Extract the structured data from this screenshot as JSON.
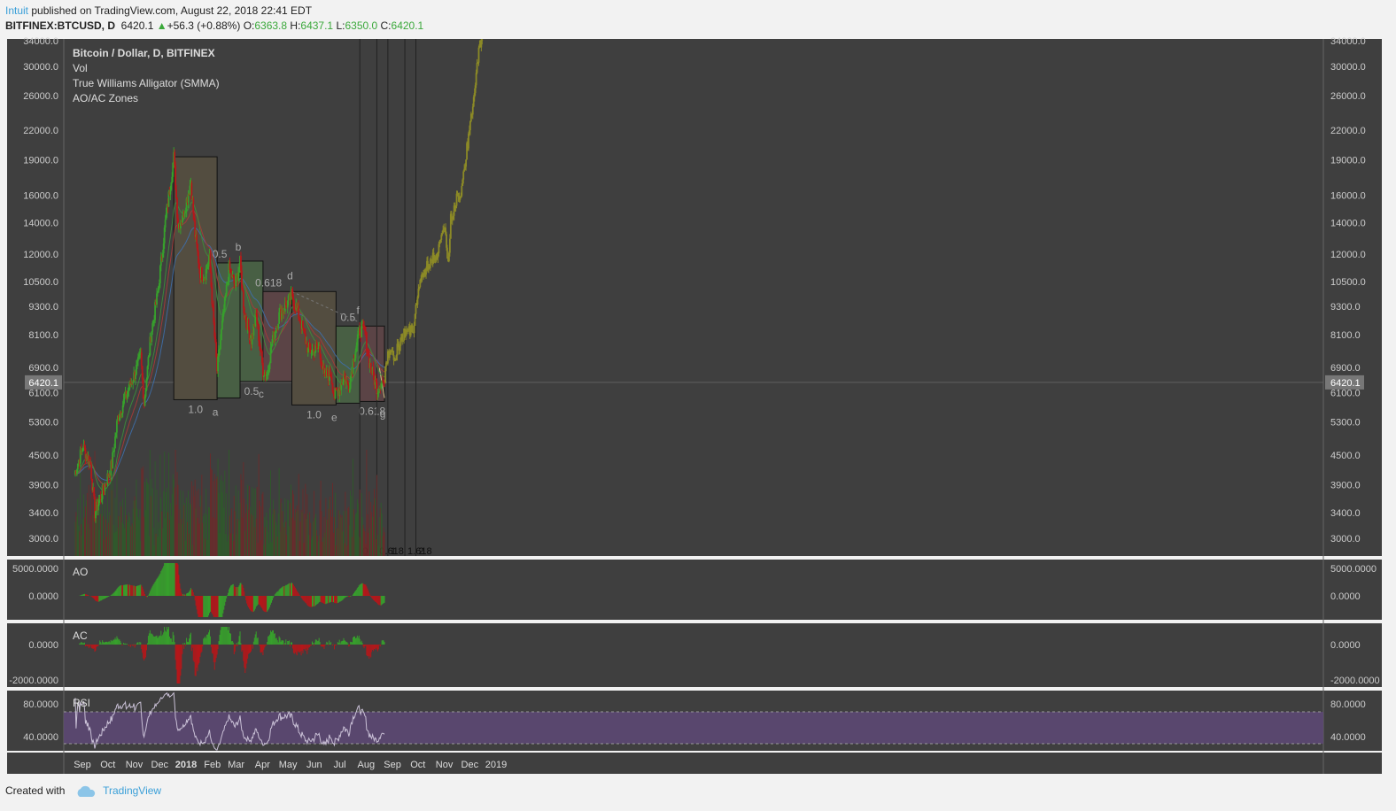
{
  "header": {
    "author": "Intuit",
    "published_text": "published on TradingView.com, August 22, 2018 22:41 EDT",
    "symbol": "BITFINEX:BTCUSD, D",
    "last_price": "6420.1",
    "change": "+56.3 (+0.88%)",
    "open_label": "O:",
    "open": "6363.8",
    "high_label": "H:",
    "high": "6437.1",
    "low_label": "L:",
    "low": "6350.0",
    "close_label": "C:",
    "close": "6420.1"
  },
  "legend": [
    "Bitcoin / Dollar, D, BITFINEX",
    "Vol",
    "True Williams Alligator (SMMA)",
    "AO/AC Zones"
  ],
  "footer": {
    "created_with": "Created with",
    "brand": "TradingView"
  },
  "colors": {
    "panel_bg": "#3f3f3f",
    "page_bg": "#f2f2f2",
    "up": "#37a02c",
    "down": "#b5171a",
    "projection": "#8c8a26",
    "rsi_band": "#5c4873",
    "green_box": "#485f44",
    "red_box": "#5b4446",
    "olive_box": "#534d40"
  },
  "chart_data": {
    "type": "candlestick",
    "title": "Bitcoin / Dollar, D, BITFINEX",
    "price_axis_ticks": [
      "34000.0",
      "30000.0",
      "26000.0",
      "22000.0",
      "19000.0",
      "16000.0",
      "14000.0",
      "12000.0",
      "10500.0",
      "9300.0",
      "8100.0",
      "6900.0",
      "6100.0",
      "5300.0",
      "4500.0",
      "3900.0",
      "3400.0",
      "3000.0"
    ],
    "current_price_label": "6420.1",
    "x_tick_labels": [
      "Sep",
      "Oct",
      "Nov",
      "Dec",
      "2018",
      "Feb",
      "Mar",
      "Apr",
      "May",
      "Jun",
      "Jul",
      "Aug",
      "Sep",
      "Oct",
      "Nov",
      "Dec",
      "2019"
    ],
    "close_path": [
      {
        "date": "2017-08-22",
        "close": 4100
      },
      {
        "date": "2017-09-01",
        "close": 4700
      },
      {
        "date": "2017-09-10",
        "close": 4300
      },
      {
        "date": "2017-09-15",
        "close": 3400
      },
      {
        "date": "2017-09-25",
        "close": 3800
      },
      {
        "date": "2017-10-05",
        "close": 4300
      },
      {
        "date": "2017-10-12",
        "close": 5400
      },
      {
        "date": "2017-10-20",
        "close": 5900
      },
      {
        "date": "2017-11-01",
        "close": 6700
      },
      {
        "date": "2017-11-08",
        "close": 7300
      },
      {
        "date": "2017-11-12",
        "close": 5800
      },
      {
        "date": "2017-11-20",
        "close": 8100
      },
      {
        "date": "2017-11-28",
        "close": 9900
      },
      {
        "date": "2017-12-07",
        "close": 14000
      },
      {
        "date": "2017-12-17",
        "close": 19300
      },
      {
        "date": "2017-12-22",
        "close": 13800
      },
      {
        "date": "2017-12-28",
        "close": 14500
      },
      {
        "date": "2018-01-06",
        "close": 17100
      },
      {
        "date": "2018-01-11",
        "close": 13200
      },
      {
        "date": "2018-01-17",
        "close": 11000
      },
      {
        "date": "2018-01-22",
        "close": 10800
      },
      {
        "date": "2018-01-28",
        "close": 11700
      },
      {
        "date": "2018-02-02",
        "close": 8500
      },
      {
        "date": "2018-02-06",
        "close": 6800
      },
      {
        "date": "2018-02-12",
        "close": 8500
      },
      {
        "date": "2018-02-20",
        "close": 11200
      },
      {
        "date": "2018-02-27",
        "close": 10300
      },
      {
        "date": "2018-03-05",
        "close": 11500
      },
      {
        "date": "2018-03-10",
        "close": 9000
      },
      {
        "date": "2018-03-18",
        "close": 7900
      },
      {
        "date": "2018-03-24",
        "close": 8900
      },
      {
        "date": "2018-04-01",
        "close": 6800
      },
      {
        "date": "2018-04-06",
        "close": 6700
      },
      {
        "date": "2018-04-12",
        "close": 7900
      },
      {
        "date": "2018-04-20",
        "close": 8900
      },
      {
        "date": "2018-04-27",
        "close": 9300
      },
      {
        "date": "2018-05-05",
        "close": 9800
      },
      {
        "date": "2018-05-10",
        "close": 9300
      },
      {
        "date": "2018-05-18",
        "close": 8300
      },
      {
        "date": "2018-05-24",
        "close": 7500
      },
      {
        "date": "2018-05-31",
        "close": 7500
      },
      {
        "date": "2018-06-06",
        "close": 7600
      },
      {
        "date": "2018-06-12",
        "close": 6600
      },
      {
        "date": "2018-06-20",
        "close": 6700
      },
      {
        "date": "2018-06-24",
        "close": 6000
      },
      {
        "date": "2018-06-29",
        "close": 6200
      },
      {
        "date": "2018-07-05",
        "close": 6600
      },
      {
        "date": "2018-07-11",
        "close": 6300
      },
      {
        "date": "2018-07-17",
        "close": 7300
      },
      {
        "date": "2018-07-24",
        "close": 8300
      },
      {
        "date": "2018-07-30",
        "close": 8200
      },
      {
        "date": "2018-08-04",
        "close": 7100
      },
      {
        "date": "2018-08-10",
        "close": 6500
      },
      {
        "date": "2018-08-14",
        "close": 6200
      },
      {
        "date": "2018-08-18",
        "close": 6500
      },
      {
        "date": "2018-08-22",
        "close": 6420.1
      }
    ],
    "projection_path": [
      {
        "date": "2018-08-23",
        "close": 6900
      },
      {
        "date": "2018-08-28",
        "close": 7600
      },
      {
        "date": "2018-09-03",
        "close": 7300
      },
      {
        "date": "2018-09-10",
        "close": 7900
      },
      {
        "date": "2018-09-18",
        "close": 8400
      },
      {
        "date": "2018-09-25",
        "close": 8200
      },
      {
        "date": "2018-10-02",
        "close": 10500
      },
      {
        "date": "2018-10-10",
        "close": 11200
      },
      {
        "date": "2018-10-18",
        "close": 11800
      },
      {
        "date": "2018-10-24",
        "close": 12000
      },
      {
        "date": "2018-10-30",
        "close": 13800
      },
      {
        "date": "2018-11-02",
        "close": 13000
      },
      {
        "date": "2018-11-05",
        "close": 11500
      },
      {
        "date": "2018-11-08",
        "close": 14200
      },
      {
        "date": "2018-11-15",
        "close": 15800
      },
      {
        "date": "2018-11-20",
        "close": 16300
      },
      {
        "date": "2018-11-26",
        "close": 19500
      },
      {
        "date": "2018-12-01",
        "close": 22500
      },
      {
        "date": "2018-12-06",
        "close": 26000
      },
      {
        "date": "2018-12-10",
        "close": 31500
      },
      {
        "date": "2018-12-15",
        "close": 35000
      }
    ],
    "zones": [
      {
        "color": "olive",
        "from": "2017-12-17",
        "to": "2018-02-06",
        "top": 19300,
        "bottom": 5900,
        "bottom_label": "1.0",
        "point": "a"
      },
      {
        "color": "green",
        "from": "2018-02-06",
        "to": "2018-03-05",
        "top": 11500,
        "bottom": 5950,
        "top_label": "0.5",
        "point": "b"
      },
      {
        "color": "green",
        "from": "2018-03-05",
        "to": "2018-04-01",
        "top": 11600,
        "bottom": 6450,
        "bottom_label": "0.5",
        "point": "c"
      },
      {
        "color": "red",
        "from": "2018-04-01",
        "to": "2018-05-05",
        "top": 10000,
        "bottom": 6450,
        "top_label": "0.618",
        "point": "d"
      },
      {
        "color": "olive",
        "from": "2018-05-05",
        "to": "2018-06-26",
        "top": 10000,
        "bottom": 5750,
        "bottom_label": "1.0",
        "point": "e"
      },
      {
        "color": "green",
        "from": "2018-06-26",
        "to": "2018-07-24",
        "top": 8450,
        "bottom": 5800,
        "top_label": "0.5",
        "point": "f"
      },
      {
        "color": "red",
        "from": "2018-07-24",
        "to": "2018-08-22",
        "top": 8450,
        "bottom": 5850,
        "bottom_label": "0.618",
        "point": "g"
      }
    ],
    "fib_time_lines": [
      {
        "label": "0",
        "date": "2018-07-24"
      },
      {
        "label": "0.618",
        "date": "2018-08-13"
      },
      {
        "label": "1",
        "date": "2018-08-26"
      },
      {
        "label": "1.618",
        "date": "2018-09-15"
      },
      {
        "label": "2",
        "date": "2018-09-28"
      }
    ],
    "indicators": {
      "AO": {
        "ticks": [
          "5000.0000",
          "0.0000"
        ]
      },
      "AC": {
        "ticks": [
          "0.0000",
          "-2000.0000"
        ]
      },
      "RSI": {
        "ticks": [
          "80.0000",
          "40.0000"
        ],
        "bands": [
          70,
          30
        ]
      }
    }
  }
}
